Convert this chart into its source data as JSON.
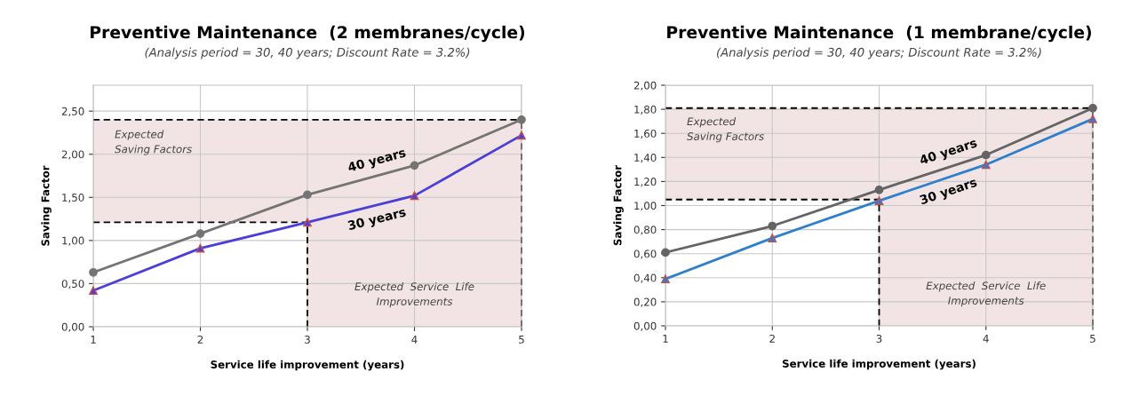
{
  "chart_data": [
    {
      "type": "line",
      "title": "Preventive Maintenance  (2 membranes/cycle)",
      "subtitle": "(Analysis period = 30, 40 years; Discount Rate = 3.2%)",
      "xlabel": "Service life improvement (years)",
      "ylabel": "Saving Factor",
      "x": [
        1,
        2,
        3,
        4,
        5
      ],
      "xlim": [
        1,
        5
      ],
      "xticks": [
        1,
        2,
        3,
        4,
        5
      ],
      "ylim": [
        0,
        2.8
      ],
      "yticks": [
        {
          "value": 0,
          "label": "0,00"
        },
        {
          "value": 0.5,
          "label": "0,50"
        },
        {
          "value": 1,
          "label": "1,00"
        },
        {
          "value": 1.5,
          "label": "1,50"
        },
        {
          "value": 2,
          "label": "2,00"
        },
        {
          "value": 2.5,
          "label": "2,50"
        }
      ],
      "grid": true,
      "legend": false,
      "series": [
        {
          "name": "40 years",
          "color": "#747474",
          "marker": "circle",
          "values": [
            0.63,
            1.08,
            1.53,
            1.87,
            2.4
          ]
        },
        {
          "name": "30 years",
          "color": "#4a3fd6",
          "marker": "triangle",
          "values": [
            0.42,
            0.91,
            1.21,
            1.52,
            2.22
          ]
        }
      ],
      "ref_lines": [
        {
          "axis": "y",
          "value": 2.4,
          "color": "#000000",
          "line_style": "dashed"
        },
        {
          "axis": "x",
          "value": 5,
          "color": "#000000",
          "line_style": "dashed"
        },
        {
          "axis": "y",
          "value": 1.21,
          "color": "#000000",
          "line_style": "dashed"
        },
        {
          "axis": "x",
          "value": 3,
          "color": "#000000",
          "line_style": "dashed"
        }
      ],
      "bands": [
        {
          "axis": "y",
          "from": 1.21,
          "to": 2.4,
          "label": "Expected\nSaving Factors",
          "color": "#f2e4e4"
        },
        {
          "axis": "x",
          "from": 3,
          "to": 5,
          "label": "Expected  Service  Life\nImprovements",
          "color": "#f2e4e4"
        }
      ]
    },
    {
      "type": "line",
      "title": "Preventive Maintenance  (1 membrane/cycle)",
      "subtitle": "(Analysis period = 30, 40 years; Discount Rate = 3.2%)",
      "xlabel": "Service life improvement (years)",
      "ylabel": "Saving Factor",
      "x": [
        1,
        2,
        3,
        4,
        5
      ],
      "xlim": [
        1,
        5
      ],
      "xticks": [
        1,
        2,
        3,
        4,
        5
      ],
      "ylim": [
        0,
        2
      ],
      "yticks": [
        {
          "value": 0,
          "label": "0,00"
        },
        {
          "value": 0.2,
          "label": "0,20"
        },
        {
          "value": 0.4,
          "label": "0,40"
        },
        {
          "value": 0.6,
          "label": "0,60"
        },
        {
          "value": 0.8,
          "label": "0,80"
        },
        {
          "value": 1,
          "label": "1,00"
        },
        {
          "value": 1.2,
          "label": "1,20"
        },
        {
          "value": 1.4,
          "label": "1,40"
        },
        {
          "value": 1.6,
          "label": "1,60"
        },
        {
          "value": 1.8,
          "label": "1,80"
        },
        {
          "value": 2,
          "label": "2,00"
        }
      ],
      "grid": true,
      "legend": false,
      "series": [
        {
          "name": "40 years",
          "color": "#646464",
          "marker": "circle",
          "values": [
            0.61,
            0.83,
            1.13,
            1.42,
            1.81
          ]
        },
        {
          "name": "30 years",
          "color": "#2f80cc",
          "marker": "triangle",
          "values": [
            0.39,
            0.73,
            1.04,
            1.34,
            1.72
          ]
        }
      ],
      "ref_lines": [
        {
          "axis": "y",
          "value": 1.81,
          "color": "#000000",
          "line_style": "dashed"
        },
        {
          "axis": "x",
          "value": 5,
          "color": "#000000",
          "line_style": "dashed"
        },
        {
          "axis": "y",
          "value": 1.05,
          "color": "#000000",
          "line_style": "dashed"
        },
        {
          "axis": "x",
          "value": 3,
          "color": "#000000",
          "line_style": "dashed"
        }
      ],
      "bands": [
        {
          "axis": "y",
          "from": 1.05,
          "to": 1.81,
          "label": "Expected\nSaving Factors",
          "color": "#f2e4e4"
        },
        {
          "axis": "x",
          "from": 3,
          "to": 5,
          "label": "Expected  Service  Life\nImprovements",
          "color": "#f2e4e4"
        }
      ]
    }
  ]
}
